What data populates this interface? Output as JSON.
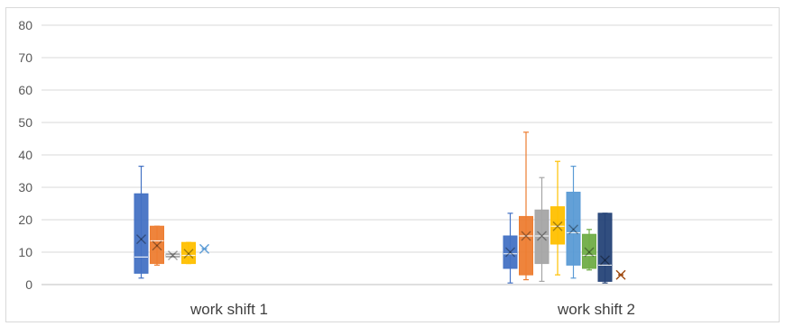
{
  "chart_data": {
    "type": "box",
    "title": "",
    "xlabel": "",
    "ylabel": "",
    "ylim": [
      0,
      80
    ],
    "yticks": [
      0,
      10,
      20,
      30,
      40,
      50,
      60,
      70,
      80
    ],
    "grid": true,
    "legend": "none",
    "categories": [
      "work shift 1",
      "work shift 2"
    ],
    "series": [
      {
        "color": "#4472C4",
        "stats": [
          {
            "min": 2,
            "q1": 3.5,
            "median": 8.5,
            "q3": 28,
            "max": 36.5,
            "mean": 14
          },
          {
            "min": 0.5,
            "q1": 5,
            "median": 9.5,
            "q3": 15,
            "max": 22,
            "mean": 10
          }
        ]
      },
      {
        "color": "#ED7D31",
        "stats": [
          {
            "min": 6,
            "q1": 6.5,
            "median": 13.5,
            "q3": 18,
            "max": 18,
            "mean": 12
          },
          {
            "min": 1.5,
            "q1": 3,
            "median": 15,
            "q3": 21,
            "max": 47,
            "mean": 15
          }
        ]
      },
      {
        "color": "#A5A5A5",
        "stats": [
          {
            "min": 8.5,
            "q1": 8.5,
            "median": 9,
            "q3": 9.5,
            "max": 9.5,
            "mean": 9
          },
          {
            "min": 1,
            "q1": 6.5,
            "median": 15,
            "q3": 23,
            "max": 33,
            "mean": 15
          }
        ]
      },
      {
        "color": "#FFC000",
        "stats": [
          {
            "min": 6.5,
            "q1": 6.5,
            "median": 9,
            "q3": 13,
            "max": 13,
            "mean": 9.5
          },
          {
            "min": 3,
            "q1": 12.5,
            "median": 18,
            "q3": 24,
            "max": 38,
            "mean": 18
          }
        ]
      },
      {
        "color": "#5B9BD5",
        "stats": [
          {
            "min": 11,
            "q1": 11,
            "median": 11,
            "q3": 11,
            "max": 11,
            "mean": 11
          },
          {
            "min": 2,
            "q1": 6,
            "median": 16,
            "q3": 28.5,
            "max": 36.5,
            "mean": 17
          }
        ]
      },
      {
        "color": "#70AD47",
        "stats": [
          null,
          {
            "min": 4.5,
            "q1": 5,
            "median": 9,
            "q3": 15.5,
            "max": 17,
            "mean": 10
          }
        ]
      },
      {
        "color": "#264478",
        "stats": [
          null,
          {
            "min": 0.5,
            "q1": 1,
            "median": 6,
            "q3": 22,
            "max": 22,
            "mean": 7.5
          }
        ]
      },
      {
        "color": "#9E480E",
        "stats": [
          null,
          {
            "min": 3,
            "q1": 3,
            "median": 3,
            "q3": 3,
            "max": 3,
            "mean": 3
          }
        ]
      }
    ]
  }
}
